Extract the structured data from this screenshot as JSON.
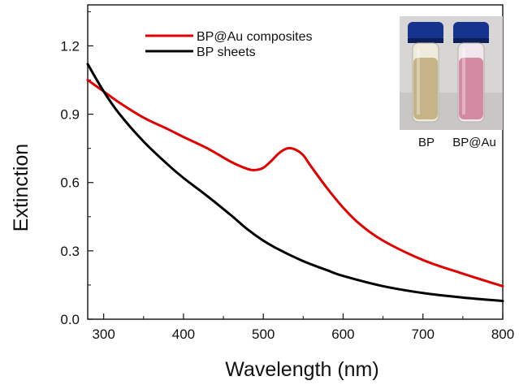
{
  "chart_data": {
    "type": "line",
    "xlabel": "Wavelength (nm)",
    "ylabel": "Extinction",
    "xlim": [
      280,
      800
    ],
    "ylim": [
      0,
      1.38
    ],
    "x_ticks": [
      300,
      400,
      500,
      600,
      700,
      800
    ],
    "y_ticks": [
      0.0,
      0.3,
      0.6,
      0.9,
      1.2
    ],
    "x_tick_labels": [
      "300",
      "400",
      "500",
      "600",
      "700",
      "800"
    ],
    "y_tick_labels": [
      "0.0",
      "0.3",
      "0.6",
      "0.9",
      "1.2"
    ],
    "grid": false,
    "legend_position": "top-left",
    "series": [
      {
        "name": "BP@Au composites",
        "color": "#e00000",
        "x": [
          280,
          300,
          320,
          350,
          380,
          400,
          430,
          460,
          480,
          490,
          500,
          510,
          520,
          530,
          540,
          550,
          560,
          580,
          600,
          620,
          650,
          700,
          750,
          800
        ],
        "y": [
          1.05,
          1.0,
          0.95,
          0.885,
          0.835,
          0.8,
          0.75,
          0.69,
          0.66,
          0.655,
          0.665,
          0.695,
          0.73,
          0.75,
          0.745,
          0.72,
          0.67,
          0.575,
          0.49,
          0.42,
          0.345,
          0.26,
          0.2,
          0.145
        ]
      },
      {
        "name": "BP sheets",
        "color": "#000000",
        "x": [
          280,
          300,
          320,
          350,
          380,
          400,
          430,
          460,
          480,
          500,
          520,
          550,
          580,
          600,
          650,
          700,
          750,
          800
        ],
        "y": [
          1.12,
          1.0,
          0.9,
          0.78,
          0.68,
          0.62,
          0.54,
          0.455,
          0.395,
          0.345,
          0.305,
          0.255,
          0.215,
          0.19,
          0.145,
          0.115,
          0.095,
          0.08
        ]
      }
    ],
    "inset": {
      "description_labels": [
        "BP",
        "BP@Au"
      ]
    }
  }
}
